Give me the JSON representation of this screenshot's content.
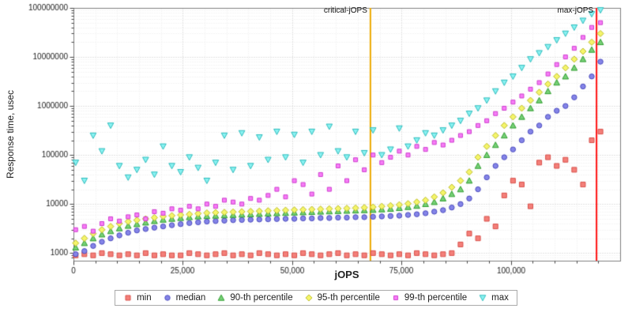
{
  "chart_data": {
    "type": "scatter",
    "title": "",
    "xlabel": "jOPS",
    "ylabel": "Response time, usec",
    "x_range": [
      0,
      125000
    ],
    "y_range": [
      700,
      100000000
    ],
    "y_scale": "log",
    "grid": true,
    "legend_position": "bottom",
    "x_ticks": [
      0,
      25000,
      50000,
      75000,
      100000
    ],
    "x_tick_labels": [
      "0",
      "25,000",
      "50,000",
      "75,000",
      "100,000"
    ],
    "y_ticks": [
      1000,
      10000,
      100000,
      1000000,
      10000000,
      100000000
    ],
    "y_tick_labels": [
      "1000",
      "10000",
      "100000",
      "1000000",
      "10000000",
      "100000000"
    ],
    "vlines": [
      {
        "label": "critical-jOPS",
        "x": 67900,
        "color": "#eda900"
      },
      {
        "label": "max-jOPS",
        "x": 119600,
        "color": "#ff1111"
      }
    ],
    "x": [
      500,
      2500,
      4500,
      6500,
      8500,
      10500,
      12500,
      14500,
      16500,
      18500,
      20500,
      22500,
      24500,
      26500,
      28500,
      30500,
      32500,
      34500,
      36500,
      38500,
      40500,
      42500,
      44500,
      46500,
      48500,
      50500,
      52500,
      54500,
      56500,
      58500,
      60500,
      62500,
      64500,
      66500,
      68500,
      70500,
      72500,
      74500,
      76500,
      78500,
      80500,
      82500,
      84500,
      86500,
      88500,
      90500,
      92500,
      94500,
      96500,
      98500,
      100500,
      102500,
      104500,
      106500,
      108500,
      110500,
      112500,
      114500,
      116500,
      118500,
      120500
    ],
    "series": [
      {
        "name": "min",
        "marker": "square",
        "fill": "#f4807a",
        "stroke": "#d94f49",
        "values": [
          900,
          950,
          900,
          1000,
          950,
          900,
          950,
          900,
          1000,
          900,
          950,
          900,
          900,
          1000,
          950,
          900,
          950,
          1000,
          900,
          950,
          900,
          1000,
          950,
          900,
          950,
          900,
          1000,
          950,
          900,
          950,
          1000,
          900,
          950,
          900,
          1000,
          950,
          900,
          950,
          900,
          1000,
          950,
          900,
          950,
          1000,
          1500,
          2500,
          2000,
          5000,
          3500,
          15000,
          30000,
          25000,
          9000,
          70000,
          90000,
          60000,
          80000,
          50000,
          25000,
          200000,
          300000
        ]
      },
      {
        "name": "median",
        "marker": "circle",
        "fill": "#8585e8",
        "stroke": "#4d4dc0",
        "values": [
          950,
          1100,
          1400,
          1700,
          2000,
          2300,
          2600,
          2900,
          3100,
          3300,
          3500,
          3700,
          3900,
          4100,
          4250,
          4400,
          4500,
          4600,
          4700,
          4750,
          4800,
          4850,
          4900,
          4950,
          5000,
          5000,
          5100,
          5100,
          5200,
          5200,
          5300,
          5300,
          5400,
          5400,
          5500,
          5600,
          5700,
          5800,
          6000,
          6200,
          6500,
          7000,
          7500,
          8500,
          10000,
          13000,
          20000,
          35000,
          60000,
          90000,
          130000,
          200000,
          300000,
          400000,
          600000,
          800000,
          1000000,
          1500000,
          2500000,
          4000000,
          8000000
        ]
      },
      {
        "name": "90-th percentile",
        "marker": "triangle-up",
        "fill": "#77d077",
        "stroke": "#2e9e2e",
        "values": [
          1300,
          1600,
          2000,
          2400,
          2800,
          3200,
          3600,
          3900,
          4200,
          4500,
          4800,
          5000,
          5200,
          5400,
          5600,
          5700,
          5800,
          5900,
          6000,
          6100,
          6200,
          6300,
          6400,
          6500,
          6600,
          6700,
          6800,
          6900,
          7000,
          7100,
          7200,
          7300,
          7400,
          7500,
          7600,
          7800,
          8000,
          8300,
          8700,
          9200,
          10000,
          11000,
          13000,
          16000,
          20000,
          30000,
          60000,
          100000,
          160000,
          250000,
          400000,
          600000,
          900000,
          1300000,
          2000000,
          3000000,
          4000000,
          6000000,
          9000000,
          14000000,
          20000000
        ]
      },
      {
        "name": "95-th percentile",
        "marker": "diamond",
        "fill": "#f5f56a",
        "stroke": "#bdbd2a",
        "values": [
          1600,
          2000,
          2500,
          3000,
          3500,
          4000,
          4400,
          4700,
          5000,
          5300,
          5600,
          5800,
          6000,
          6200,
          6400,
          6600,
          6700,
          6800,
          6900,
          7000,
          7100,
          7200,
          7300,
          7400,
          7500,
          7600,
          7700,
          7800,
          7900,
          8000,
          8100,
          8200,
          8300,
          8500,
          8700,
          9000,
          9300,
          9700,
          10200,
          11000,
          12000,
          14000,
          17000,
          22000,
          30000,
          45000,
          90000,
          150000,
          250000,
          400000,
          600000,
          900000,
          1300000,
          1900000,
          2800000,
          4000000,
          6000000,
          9000000,
          13000000,
          20000000,
          30000000
        ]
      },
      {
        "name": "99-th percentile",
        "marker": "square-small",
        "fill": "#f77df7",
        "stroke": "#cf3ecf",
        "values": [
          3000,
          3500,
          2800,
          4000,
          5000,
          4500,
          5500,
          6000,
          5000,
          7000,
          6500,
          8000,
          7500,
          9000,
          8000,
          10000,
          9000,
          12000,
          11000,
          10000,
          13000,
          12000,
          15000,
          20000,
          14000,
          30000,
          25000,
          16000,
          40000,
          20000,
          60000,
          30000,
          80000,
          50000,
          100000,
          70000,
          90000,
          120000,
          100000,
          150000,
          130000,
          180000,
          160000,
          200000,
          250000,
          300000,
          400000,
          500000,
          700000,
          900000,
          1200000,
          1600000,
          2200000,
          3000000,
          4500000,
          7000000,
          10000000,
          15000000,
          25000000,
          40000000,
          50000000
        ]
      },
      {
        "name": "max",
        "marker": "triangle-down",
        "fill": "#8af2f2",
        "stroke": "#2fbdbd",
        "values": [
          70000,
          30000,
          250000,
          120000,
          400000,
          60000,
          35000,
          50000,
          80000,
          40000,
          150000,
          60000,
          45000,
          90000,
          55000,
          30000,
          70000,
          250000,
          50000,
          280000,
          60000,
          230000,
          80000,
          300000,
          90000,
          260000,
          70000,
          300000,
          100000,
          380000,
          120000,
          90000,
          300000,
          110000,
          320000,
          100000,
          130000,
          350000,
          150000,
          200000,
          280000,
          250000,
          320000,
          400000,
          500000,
          700000,
          900000,
          1300000,
          2000000,
          3000000,
          4000000,
          6000000,
          9000000,
          12000000,
          16000000,
          22000000,
          30000000,
          40000000,
          55000000,
          75000000,
          90000000
        ]
      }
    ]
  }
}
